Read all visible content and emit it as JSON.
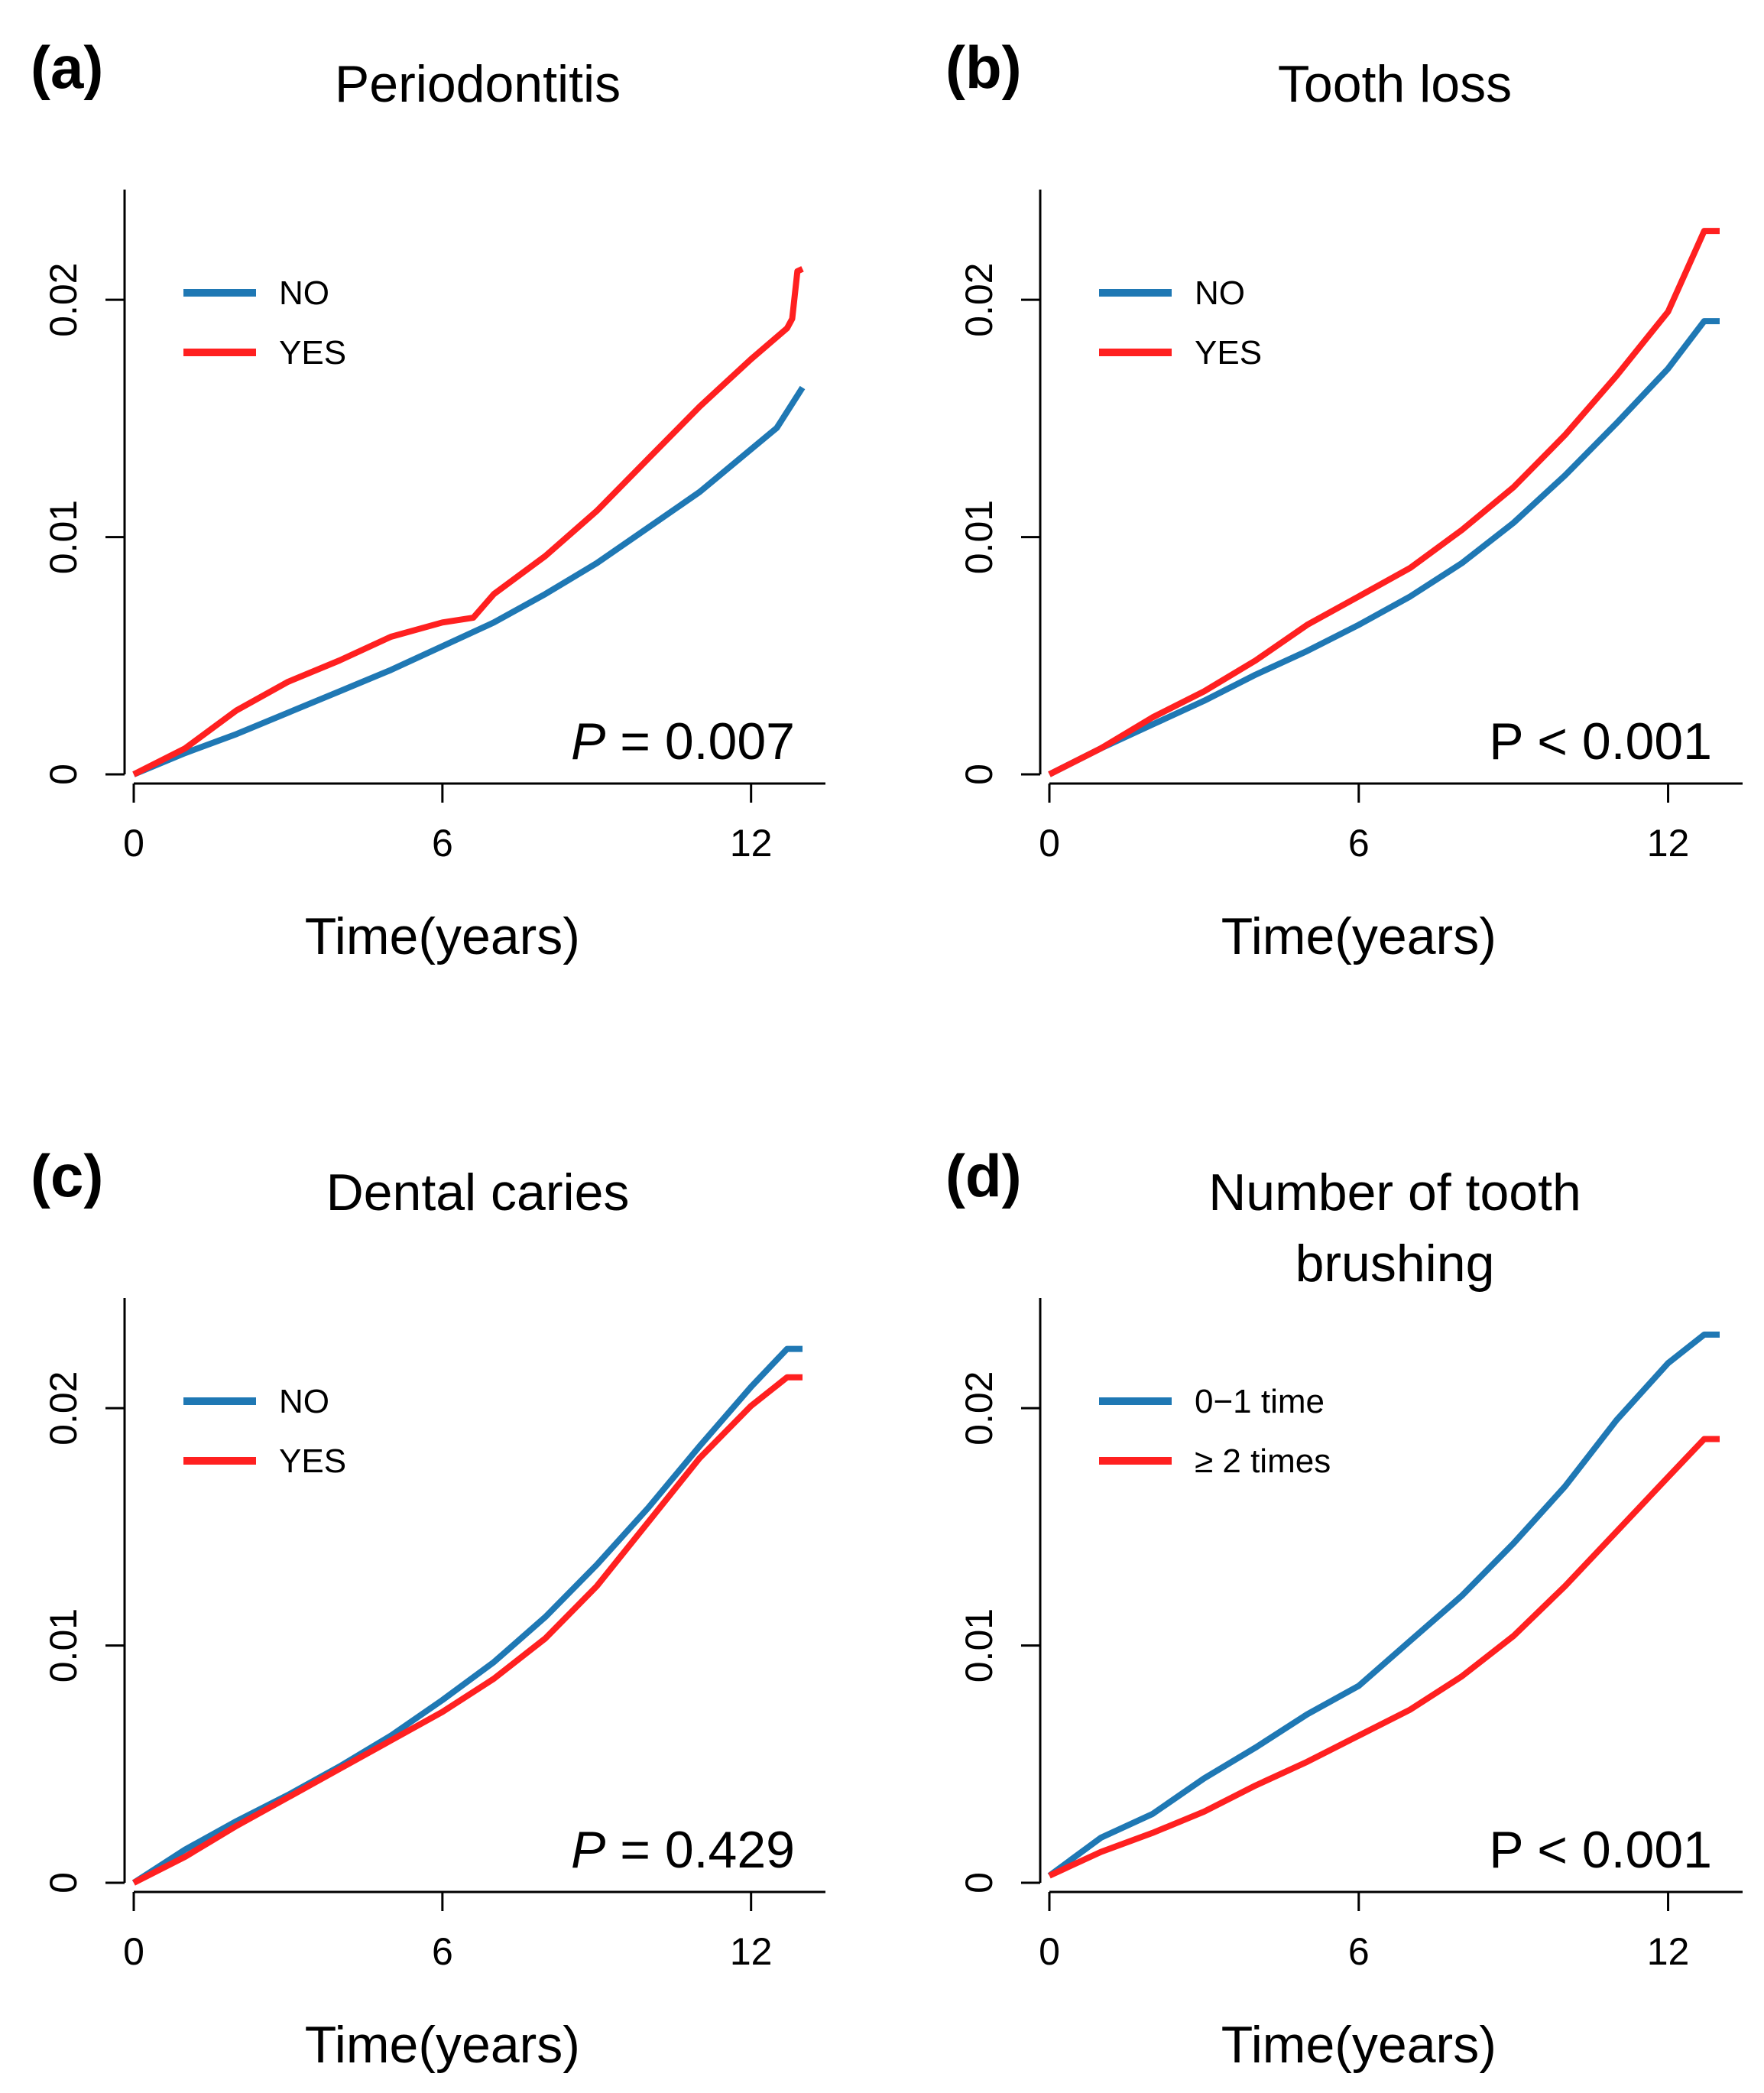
{
  "colors": {
    "blue": "#1f78b4",
    "red": "#ff2020"
  },
  "chart_data": [
    {
      "letter": "(a)",
      "title_lines": [
        "Periodontitis"
      ],
      "type": "line",
      "xlabel": "Time(years)",
      "ylabel": "",
      "xlim": [
        0,
        13
      ],
      "ylim": [
        0,
        0.024
      ],
      "xticks": [
        "0",
        "6",
        "12"
      ],
      "xtick_values": [
        0,
        6,
        12
      ],
      "yticks": [
        "0",
        "0.01",
        "0.02"
      ],
      "ytick_values": [
        0,
        0.01,
        0.02
      ],
      "legend_position": "top-left",
      "p_prefix": "P",
      "p_prefix_italic": true,
      "p_rest": " = 0.007",
      "series": [
        {
          "name": "NO",
          "color": "#1f78b4",
          "x": [
            0,
            1,
            2,
            3,
            4,
            5,
            6,
            7,
            8,
            9,
            10,
            11,
            12,
            12.5,
            13
          ],
          "y": [
            0,
            0.0009,
            0.0017,
            0.0026,
            0.0035,
            0.0044,
            0.0054,
            0.0064,
            0.0076,
            0.0089,
            0.0104,
            0.0119,
            0.0137,
            0.0146,
            0.0163
          ]
        },
        {
          "name": "YES",
          "color": "#ff2020",
          "x": [
            0,
            1,
            2,
            3,
            4,
            5,
            6,
            6.6,
            7,
            8,
            9,
            10,
            11,
            12,
            12.7,
            12.8,
            12.9,
            13
          ],
          "y": [
            0,
            0.0011,
            0.0027,
            0.0039,
            0.0048,
            0.0058,
            0.0064,
            0.0066,
            0.0076,
            0.0092,
            0.0111,
            0.0133,
            0.0155,
            0.0175,
            0.0188,
            0.0192,
            0.0212,
            0.0213
          ]
        }
      ]
    },
    {
      "letter": "(b)",
      "title_lines": [
        "Tooth loss"
      ],
      "type": "line",
      "xlabel": "Time(years)",
      "ylabel": "",
      "xlim": [
        0,
        13
      ],
      "ylim": [
        0,
        0.024
      ],
      "xticks": [
        "0",
        "6",
        "12"
      ],
      "xtick_values": [
        0,
        6,
        12
      ],
      "yticks": [
        "0",
        "0.01",
        "0.02"
      ],
      "ytick_values": [
        0,
        0.01,
        0.02
      ],
      "legend_position": "top-left",
      "p_prefix": "P",
      "p_prefix_italic": false,
      "p_rest": " < 0.001",
      "series": [
        {
          "name": "NO",
          "color": "#1f78b4",
          "x": [
            0,
            1,
            2,
            3,
            4,
            5,
            6,
            7,
            8,
            9,
            10,
            11,
            12,
            12.7,
            13
          ],
          "y": [
            0,
            0.0011,
            0.0021,
            0.0031,
            0.0042,
            0.0052,
            0.0063,
            0.0075,
            0.0089,
            0.0106,
            0.0126,
            0.0148,
            0.0171,
            0.0191,
            0.0191
          ]
        },
        {
          "name": "YES",
          "color": "#ff2020",
          "x": [
            0,
            1,
            2,
            3,
            4,
            5,
            6,
            7,
            8,
            9,
            10,
            11,
            12,
            12.7,
            13
          ],
          "y": [
            0,
            0.0011,
            0.0024,
            0.0035,
            0.0048,
            0.0063,
            0.0075,
            0.0087,
            0.0103,
            0.0121,
            0.0143,
            0.0168,
            0.0195,
            0.0229,
            0.0229
          ]
        }
      ]
    },
    {
      "letter": "(c)",
      "title_lines": [
        "Dental caries"
      ],
      "type": "line",
      "xlabel": "Time(years)",
      "ylabel": "",
      "xlim": [
        0,
        13
      ],
      "ylim": [
        0,
        0.024
      ],
      "xticks": [
        "0",
        "6",
        "12"
      ],
      "xtick_values": [
        0,
        6,
        12
      ],
      "yticks": [
        "0",
        "0.01",
        "0.02"
      ],
      "ytick_values": [
        0,
        0.01,
        0.02
      ],
      "legend_position": "top-left",
      "p_prefix": "P",
      "p_prefix_italic": true,
      "p_rest": " = 0.429",
      "series": [
        {
          "name": "NO",
          "color": "#1f78b4",
          "x": [
            0,
            1,
            2,
            3,
            4,
            5,
            6,
            7,
            8,
            9,
            10,
            11,
            12,
            12.7,
            13
          ],
          "y": [
            0,
            0.0014,
            0.0026,
            0.0037,
            0.0049,
            0.0062,
            0.0077,
            0.0093,
            0.0112,
            0.0134,
            0.0158,
            0.0184,
            0.0209,
            0.0225,
            0.0225
          ]
        },
        {
          "name": "YES",
          "color": "#ff2020",
          "x": [
            0,
            1,
            2,
            3,
            4,
            5,
            6,
            7,
            8,
            9,
            10,
            11,
            12,
            12.7,
            13
          ],
          "y": [
            0,
            0.0011,
            0.0024,
            0.0036,
            0.0048,
            0.006,
            0.0072,
            0.0086,
            0.0103,
            0.0125,
            0.0152,
            0.0179,
            0.0201,
            0.0213,
            0.0213
          ]
        }
      ]
    },
    {
      "letter": "(d)",
      "title_lines": [
        "Number of tooth",
        "brushing"
      ],
      "type": "line",
      "xlabel": "Time(years)",
      "ylabel": "",
      "xlim": [
        0,
        13
      ],
      "ylim": [
        0,
        0.024
      ],
      "xticks": [
        "0",
        "6",
        "12"
      ],
      "xtick_values": [
        0,
        6,
        12
      ],
      "yticks": [
        "0",
        "0.01",
        "0.02"
      ],
      "ytick_values": [
        0,
        0.01,
        0.02
      ],
      "legend_position": "top-left",
      "p_prefix": "P",
      "p_prefix_italic": false,
      "p_rest": " < 0.001",
      "series": [
        {
          "name": "0−1 time",
          "color": "#1f78b4",
          "x": [
            0,
            1,
            2,
            3,
            4,
            5,
            6,
            7,
            8,
            9,
            10,
            11,
            12,
            12.7,
            13
          ],
          "y": [
            0.0003,
            0.0019,
            0.0029,
            0.0044,
            0.0057,
            0.0071,
            0.0083,
            0.0102,
            0.0121,
            0.0143,
            0.0167,
            0.0195,
            0.0219,
            0.0231,
            0.0231
          ]
        },
        {
          "name": "≥ 2 times",
          "color": "#ff2020",
          "x": [
            0,
            1,
            2,
            3,
            4,
            5,
            6,
            7,
            8,
            9,
            10,
            11,
            12,
            12.7,
            13
          ],
          "y": [
            0.0003,
            0.0013,
            0.0021,
            0.003,
            0.0041,
            0.0051,
            0.0062,
            0.0073,
            0.0087,
            0.0104,
            0.0125,
            0.0148,
            0.0171,
            0.0187,
            0.0187
          ]
        }
      ]
    }
  ]
}
